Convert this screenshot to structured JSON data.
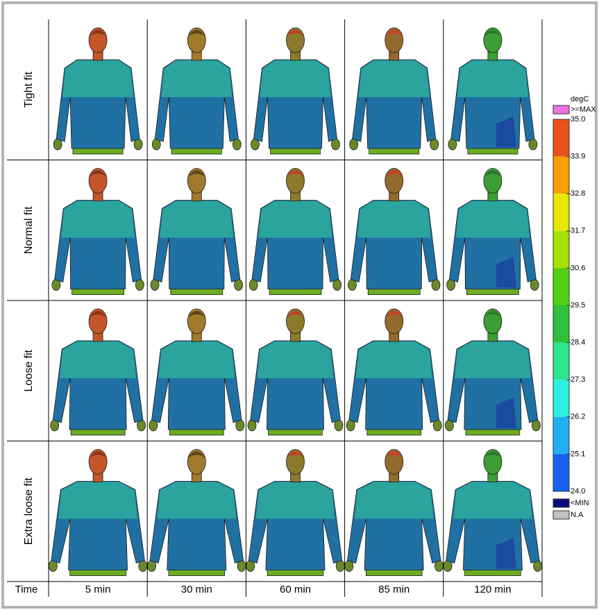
{
  "row_labels": [
    "Tight fit",
    "Normal fit",
    "Loose fit",
    "Extra loose fit"
  ],
  "column_header": "Time",
  "column_labels": [
    "5 min",
    "30 min",
    "60 min",
    "85 min",
    "120 min"
  ],
  "legend": {
    "unit": "degC",
    "max_label": ">=MAX",
    "ticks": [
      "35.0",
      "33.9",
      "32.8",
      "31.7",
      "30.6",
      "29.5",
      "28.4",
      "27.3",
      "26.2",
      "25.1",
      "24.0"
    ],
    "min_label": "<MIN",
    "na_label": "N.A"
  }
}
